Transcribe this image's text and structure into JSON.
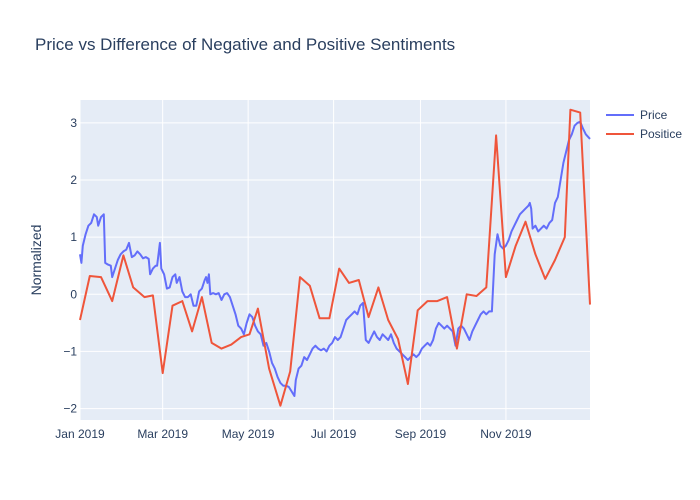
{
  "chart_data": {
    "type": "line",
    "title": "Price vs Difference of Negative and Positive Sentiments",
    "xlabel": "",
    "ylabel": "Normalized",
    "xlim": [
      "2019-01-01",
      "2019-12-31"
    ],
    "ylim": [
      -2.2,
      3.4
    ],
    "x_ticks": [
      {
        "date": "2019-01-01",
        "label": "Jan 2019"
      },
      {
        "date": "2019-03-01",
        "label": "Mar 2019"
      },
      {
        "date": "2019-05-01",
        "label": "May 2019"
      },
      {
        "date": "2019-07-01",
        "label": "Jul 2019"
      },
      {
        "date": "2019-09-01",
        "label": "Sep 2019"
      },
      {
        "date": "2019-11-01",
        "label": "Nov 2019"
      }
    ],
    "y_ticks": [
      -2,
      -1,
      0,
      1,
      2,
      3
    ],
    "y_tick_labels": [
      "−2",
      "−1",
      "0",
      "1",
      "2",
      "3"
    ],
    "grid": true,
    "legend_position": "top-right",
    "series": [
      {
        "name": "Price",
        "color": "#636efa",
        "points": [
          [
            "2019-01-01",
            0.7
          ],
          [
            "2019-01-02",
            0.55
          ],
          [
            "2019-01-03",
            0.85
          ],
          [
            "2019-01-05",
            1.05
          ],
          [
            "2019-01-07",
            1.2
          ],
          [
            "2019-01-09",
            1.25
          ],
          [
            "2019-01-11",
            1.4
          ],
          [
            "2019-01-13",
            1.35
          ],
          [
            "2019-01-14",
            1.2
          ],
          [
            "2019-01-16",
            1.35
          ],
          [
            "2019-01-18",
            1.4
          ],
          [
            "2019-01-19",
            0.55
          ],
          [
            "2019-01-21",
            0.52
          ],
          [
            "2019-01-23",
            0.5
          ],
          [
            "2019-01-24",
            0.3
          ],
          [
            "2019-01-26",
            0.45
          ],
          [
            "2019-01-28",
            0.6
          ],
          [
            "2019-01-30",
            0.7
          ],
          [
            "2019-02-01",
            0.75
          ],
          [
            "2019-02-03",
            0.78
          ],
          [
            "2019-02-05",
            0.9
          ],
          [
            "2019-02-07",
            0.65
          ],
          [
            "2019-02-09",
            0.68
          ],
          [
            "2019-02-11",
            0.75
          ],
          [
            "2019-02-13",
            0.7
          ],
          [
            "2019-02-15",
            0.63
          ],
          [
            "2019-02-17",
            0.65
          ],
          [
            "2019-02-19",
            0.62
          ],
          [
            "2019-02-20",
            0.35
          ],
          [
            "2019-02-22",
            0.45
          ],
          [
            "2019-02-24",
            0.5
          ],
          [
            "2019-02-25",
            0.5
          ],
          [
            "2019-02-27",
            0.9
          ],
          [
            "2019-02-28",
            0.45
          ],
          [
            "2019-03-02",
            0.35
          ],
          [
            "2019-03-04",
            0.1
          ],
          [
            "2019-03-06",
            0.12
          ],
          [
            "2019-03-08",
            0.3
          ],
          [
            "2019-03-10",
            0.35
          ],
          [
            "2019-03-11",
            0.2
          ],
          [
            "2019-03-13",
            0.3
          ],
          [
            "2019-03-15",
            0.05
          ],
          [
            "2019-03-17",
            -0.05
          ],
          [
            "2019-03-19",
            -0.05
          ],
          [
            "2019-03-21",
            0.0
          ],
          [
            "2019-03-23",
            -0.2
          ],
          [
            "2019-03-25",
            -0.2
          ],
          [
            "2019-03-27",
            0.05
          ],
          [
            "2019-03-29",
            0.1
          ],
          [
            "2019-03-31",
            0.25
          ],
          [
            "2019-04-01",
            0.3
          ],
          [
            "2019-04-02",
            0.2
          ],
          [
            "2019-04-03",
            0.35
          ],
          [
            "2019-04-04",
            0.0
          ],
          [
            "2019-04-06",
            0.02
          ],
          [
            "2019-04-08",
            0.0
          ],
          [
            "2019-04-10",
            0.02
          ],
          [
            "2019-04-12",
            -0.1
          ],
          [
            "2019-04-14",
            0.0
          ],
          [
            "2019-04-16",
            0.02
          ],
          [
            "2019-04-18",
            -0.05
          ],
          [
            "2019-04-20",
            -0.2
          ],
          [
            "2019-04-22",
            -0.35
          ],
          [
            "2019-04-24",
            -0.55
          ],
          [
            "2019-04-26",
            -0.6
          ],
          [
            "2019-04-28",
            -0.7
          ],
          [
            "2019-04-30",
            -0.5
          ],
          [
            "2019-05-02",
            -0.35
          ],
          [
            "2019-05-04",
            -0.4
          ],
          [
            "2019-05-06",
            -0.55
          ],
          [
            "2019-05-08",
            -0.65
          ],
          [
            "2019-05-10",
            -0.7
          ],
          [
            "2019-05-12",
            -0.9
          ],
          [
            "2019-05-14",
            -0.85
          ],
          [
            "2019-05-16",
            -1.0
          ],
          [
            "2019-05-18",
            -1.2
          ],
          [
            "2019-05-20",
            -1.3
          ],
          [
            "2019-05-22",
            -1.45
          ],
          [
            "2019-05-24",
            -1.55
          ],
          [
            "2019-05-26",
            -1.6
          ],
          [
            "2019-05-28",
            -1.6
          ],
          [
            "2019-05-30",
            -1.62
          ],
          [
            "2019-06-01",
            -1.7
          ],
          [
            "2019-06-03",
            -1.78
          ],
          [
            "2019-06-04",
            -1.5
          ],
          [
            "2019-06-06",
            -1.3
          ],
          [
            "2019-06-08",
            -1.25
          ],
          [
            "2019-06-10",
            -1.1
          ],
          [
            "2019-06-12",
            -1.15
          ],
          [
            "2019-06-14",
            -1.05
          ],
          [
            "2019-06-16",
            -0.95
          ],
          [
            "2019-06-18",
            -0.9
          ],
          [
            "2019-06-20",
            -0.95
          ],
          [
            "2019-06-22",
            -0.98
          ],
          [
            "2019-06-24",
            -0.95
          ],
          [
            "2019-06-26",
            -1.0
          ],
          [
            "2019-06-28",
            -0.9
          ],
          [
            "2019-06-30",
            -0.85
          ],
          [
            "2019-07-02",
            -0.75
          ],
          [
            "2019-07-04",
            -0.8
          ],
          [
            "2019-07-06",
            -0.75
          ],
          [
            "2019-07-08",
            -0.6
          ],
          [
            "2019-07-10",
            -0.45
          ],
          [
            "2019-07-12",
            -0.4
          ],
          [
            "2019-07-14",
            -0.35
          ],
          [
            "2019-07-16",
            -0.3
          ],
          [
            "2019-07-18",
            -0.35
          ],
          [
            "2019-07-20",
            -0.2
          ],
          [
            "2019-07-22",
            -0.15
          ],
          [
            "2019-07-24",
            -0.8
          ],
          [
            "2019-07-26",
            -0.85
          ],
          [
            "2019-07-28",
            -0.75
          ],
          [
            "2019-07-30",
            -0.65
          ],
          [
            "2019-08-01",
            -0.75
          ],
          [
            "2019-08-03",
            -0.8
          ],
          [
            "2019-08-05",
            -0.7
          ],
          [
            "2019-08-07",
            -0.75
          ],
          [
            "2019-08-09",
            -0.8
          ],
          [
            "2019-08-11",
            -0.7
          ],
          [
            "2019-08-13",
            -0.85
          ],
          [
            "2019-08-15",
            -0.95
          ],
          [
            "2019-08-17",
            -1.0
          ],
          [
            "2019-08-19",
            -1.05
          ],
          [
            "2019-08-21",
            -1.1
          ],
          [
            "2019-08-23",
            -1.15
          ],
          [
            "2019-08-25",
            -1.1
          ],
          [
            "2019-08-27",
            -1.05
          ],
          [
            "2019-08-29",
            -1.1
          ],
          [
            "2019-08-31",
            -1.05
          ],
          [
            "2019-09-02",
            -0.95
          ],
          [
            "2019-09-04",
            -0.9
          ],
          [
            "2019-09-06",
            -0.85
          ],
          [
            "2019-09-08",
            -0.9
          ],
          [
            "2019-09-10",
            -0.8
          ],
          [
            "2019-09-12",
            -0.6
          ],
          [
            "2019-09-14",
            -0.5
          ],
          [
            "2019-09-16",
            -0.55
          ],
          [
            "2019-09-18",
            -0.6
          ],
          [
            "2019-09-20",
            -0.55
          ],
          [
            "2019-09-22",
            -0.6
          ],
          [
            "2019-09-24",
            -0.65
          ],
          [
            "2019-09-26",
            -0.9
          ],
          [
            "2019-09-28",
            -0.6
          ],
          [
            "2019-09-30",
            -0.55
          ],
          [
            "2019-10-02",
            -0.6
          ],
          [
            "2019-10-04",
            -0.7
          ],
          [
            "2019-10-06",
            -0.8
          ],
          [
            "2019-10-08",
            -0.65
          ],
          [
            "2019-10-10",
            -0.55
          ],
          [
            "2019-10-12",
            -0.45
          ],
          [
            "2019-10-14",
            -0.35
          ],
          [
            "2019-10-16",
            -0.3
          ],
          [
            "2019-10-18",
            -0.35
          ],
          [
            "2019-10-20",
            -0.3
          ],
          [
            "2019-10-22",
            -0.3
          ],
          [
            "2019-10-24",
            0.7
          ],
          [
            "2019-10-26",
            1.05
          ],
          [
            "2019-10-28",
            0.85
          ],
          [
            "2019-10-30",
            0.8
          ],
          [
            "2019-11-01",
            0.85
          ],
          [
            "2019-11-03",
            0.95
          ],
          [
            "2019-11-05",
            1.1
          ],
          [
            "2019-11-07",
            1.2
          ],
          [
            "2019-11-09",
            1.3
          ],
          [
            "2019-11-11",
            1.4
          ],
          [
            "2019-11-13",
            1.45
          ],
          [
            "2019-11-15",
            1.5
          ],
          [
            "2019-11-17",
            1.55
          ],
          [
            "2019-11-18",
            1.6
          ],
          [
            "2019-11-19",
            1.5
          ],
          [
            "2019-11-20",
            1.15
          ],
          [
            "2019-11-22",
            1.2
          ],
          [
            "2019-11-24",
            1.1
          ],
          [
            "2019-11-26",
            1.15
          ],
          [
            "2019-11-28",
            1.2
          ],
          [
            "2019-11-30",
            1.15
          ],
          [
            "2019-12-02",
            1.25
          ],
          [
            "2019-12-04",
            1.3
          ],
          [
            "2019-12-06",
            1.6
          ],
          [
            "2019-12-08",
            1.7
          ],
          [
            "2019-12-10",
            2.0
          ],
          [
            "2019-12-12",
            2.3
          ],
          [
            "2019-12-14",
            2.5
          ],
          [
            "2019-12-16",
            2.7
          ],
          [
            "2019-12-18",
            2.8
          ],
          [
            "2019-12-20",
            2.95
          ],
          [
            "2019-12-22",
            3.0
          ],
          [
            "2019-12-24",
            3.02
          ],
          [
            "2019-12-26",
            2.9
          ],
          [
            "2019-12-28",
            2.8
          ],
          [
            "2019-12-31",
            2.72
          ]
        ]
      },
      {
        "name": "Positice",
        "color": "#ef553b",
        "points": [
          [
            "2019-01-01",
            -0.45
          ],
          [
            "2019-01-08",
            0.32
          ],
          [
            "2019-01-16",
            0.3
          ],
          [
            "2019-01-24",
            -0.12
          ],
          [
            "2019-02-01",
            0.68
          ],
          [
            "2019-02-08",
            0.12
          ],
          [
            "2019-02-16",
            -0.05
          ],
          [
            "2019-02-22",
            -0.02
          ],
          [
            "2019-03-01",
            -1.38
          ],
          [
            "2019-03-08",
            -0.2
          ],
          [
            "2019-03-15",
            -0.12
          ],
          [
            "2019-03-22",
            -0.65
          ],
          [
            "2019-03-29",
            -0.05
          ],
          [
            "2019-04-05",
            -0.85
          ],
          [
            "2019-04-12",
            -0.95
          ],
          [
            "2019-04-19",
            -0.88
          ],
          [
            "2019-04-26",
            -0.75
          ],
          [
            "2019-05-02",
            -0.7
          ],
          [
            "2019-05-08",
            -0.25
          ],
          [
            "2019-05-16",
            -1.3
          ],
          [
            "2019-05-24",
            -1.95
          ],
          [
            "2019-05-31",
            -1.35
          ],
          [
            "2019-06-07",
            0.3
          ],
          [
            "2019-06-14",
            0.15
          ],
          [
            "2019-06-21",
            -0.42
          ],
          [
            "2019-06-28",
            -0.42
          ],
          [
            "2019-07-05",
            0.45
          ],
          [
            "2019-07-12",
            0.2
          ],
          [
            "2019-07-19",
            0.25
          ],
          [
            "2019-07-26",
            -0.4
          ],
          [
            "2019-08-02",
            0.12
          ],
          [
            "2019-08-09",
            -0.45
          ],
          [
            "2019-08-16",
            -0.78
          ],
          [
            "2019-08-23",
            -1.57
          ],
          [
            "2019-08-30",
            -0.28
          ],
          [
            "2019-09-06",
            -0.12
          ],
          [
            "2019-09-13",
            -0.12
          ],
          [
            "2019-09-20",
            -0.05
          ],
          [
            "2019-09-27",
            -0.95
          ],
          [
            "2019-10-04",
            0.0
          ],
          [
            "2019-10-11",
            -0.03
          ],
          [
            "2019-10-18",
            0.12
          ],
          [
            "2019-10-25",
            2.78
          ],
          [
            "2019-11-01",
            0.3
          ],
          [
            "2019-11-08",
            0.85
          ],
          [
            "2019-11-15",
            1.27
          ],
          [
            "2019-11-22",
            0.7
          ],
          [
            "2019-11-29",
            0.27
          ],
          [
            "2019-12-06",
            0.6
          ],
          [
            "2019-12-13",
            1.0
          ],
          [
            "2019-12-17",
            3.23
          ],
          [
            "2019-12-24",
            3.18
          ],
          [
            "2019-12-31",
            -0.18
          ]
        ]
      }
    ]
  }
}
